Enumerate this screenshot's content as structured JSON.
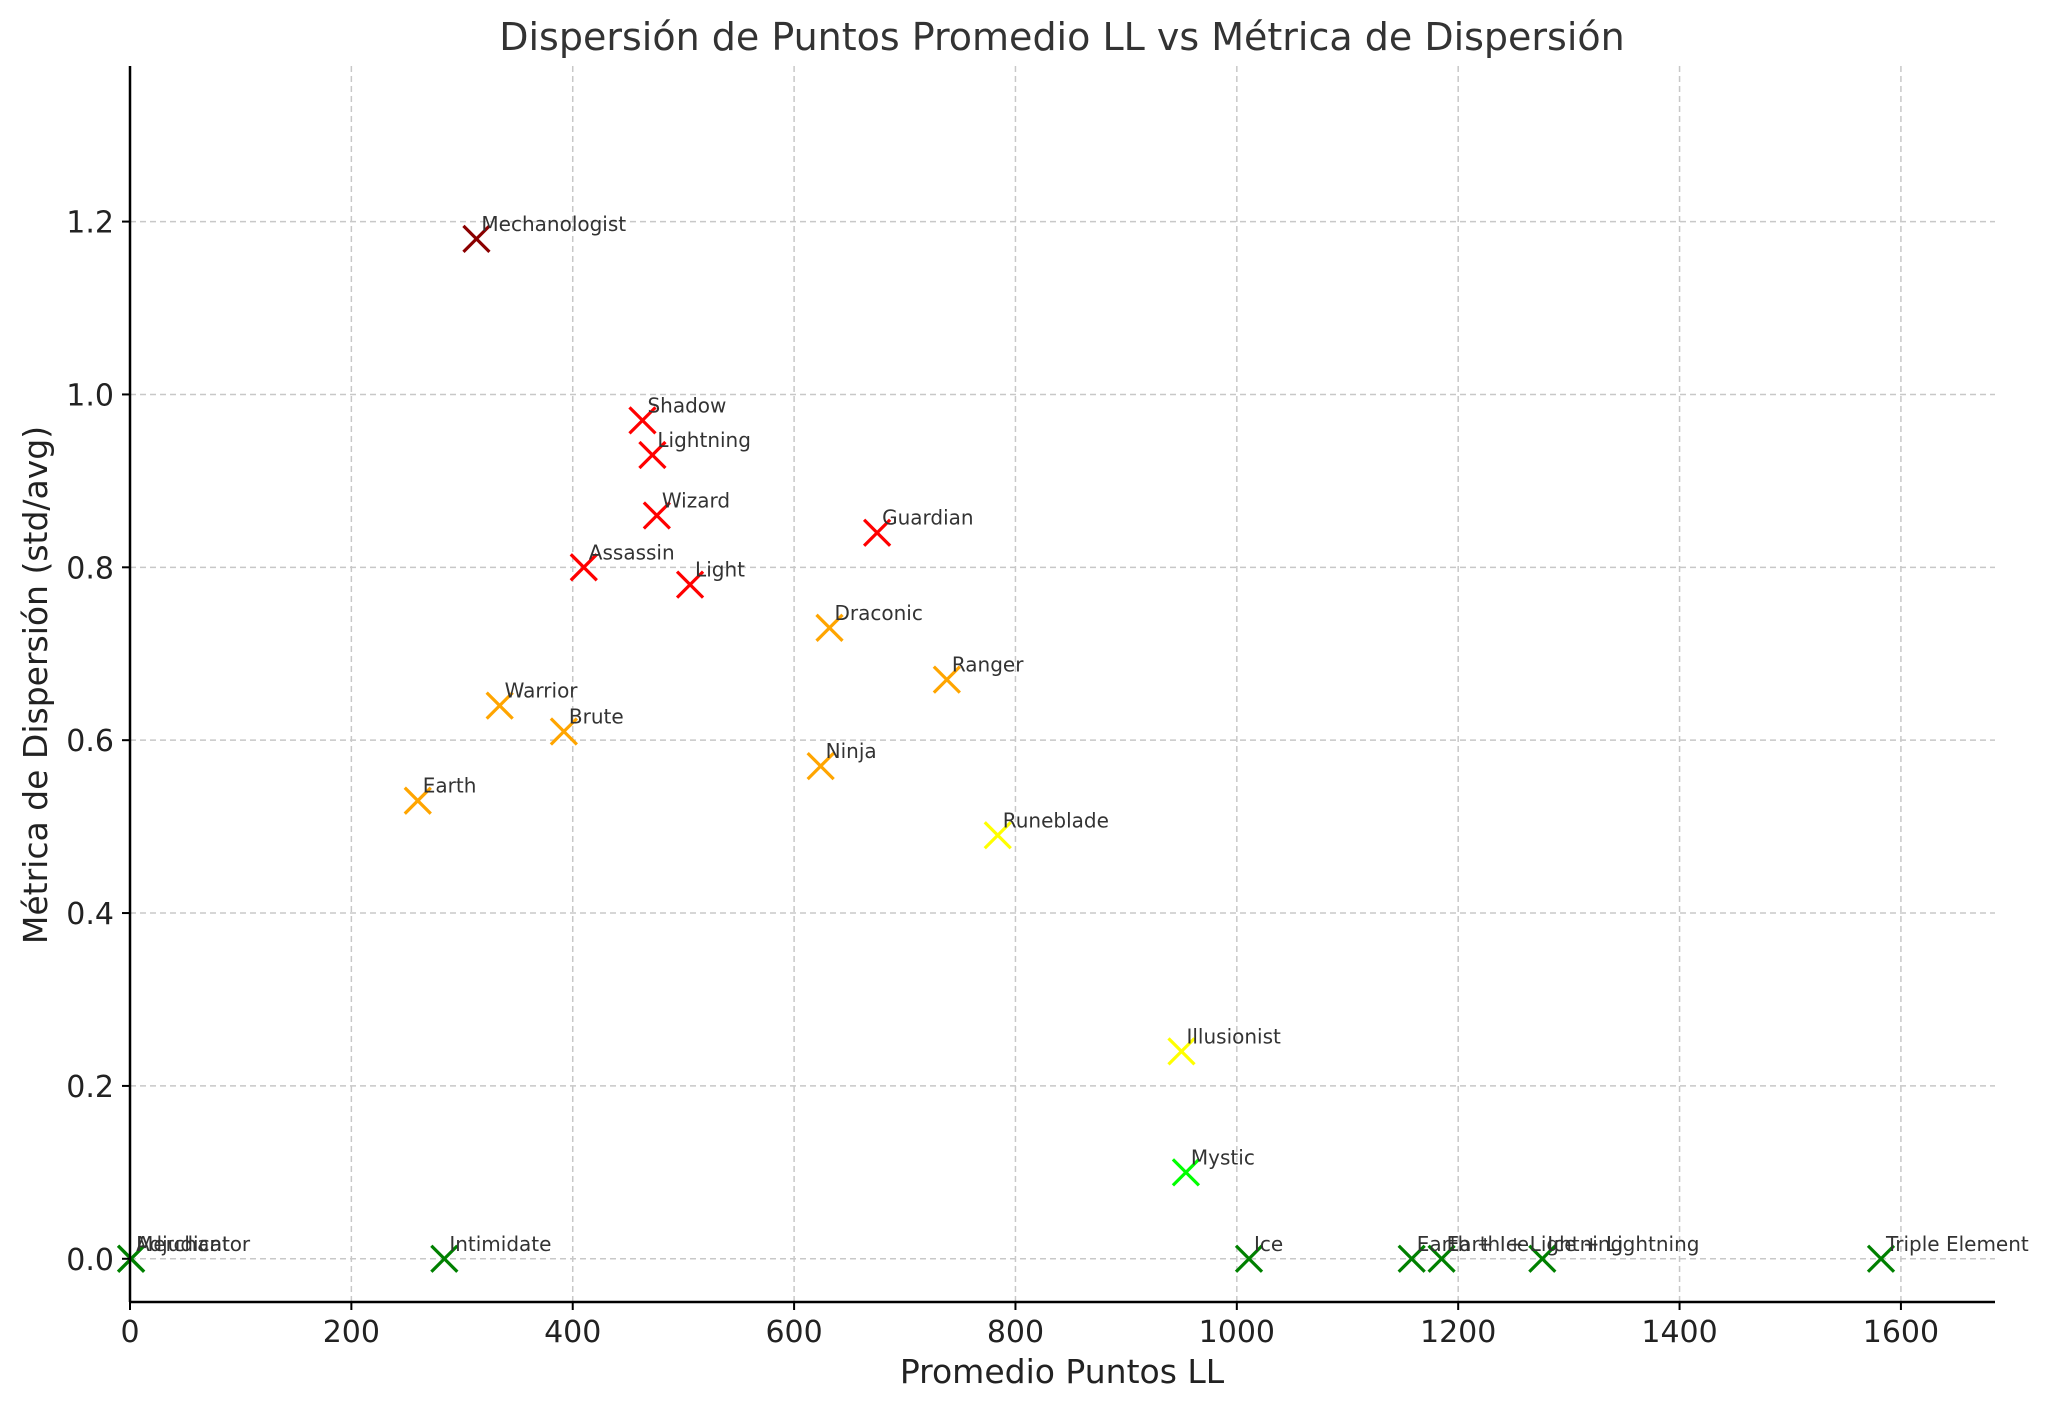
{
  "chart_data": {
    "type": "scatter",
    "title": "Dispersión de Puntos Promedio LL vs Métrica de Dispersión",
    "xlabel": "Promedio Puntos LL",
    "ylabel": "Métrica de Dispersión (std/avg)",
    "xlim": [
      0,
      1685
    ],
    "ylim": [
      -0.05,
      1.38
    ],
    "xticks": [
      "0",
      "200",
      "400",
      "600",
      "800",
      "1000",
      "1200",
      "1400",
      "1600"
    ],
    "yticks": [
      "0.0",
      "0.2",
      "0.4",
      "0.6",
      "0.8",
      "1.0",
      "1.2"
    ],
    "grid": true,
    "marker": "x",
    "colors": {
      "darkred": "#8b0000",
      "red": "#ff0000",
      "orange": "#ffa500",
      "yellow": "#ffff00",
      "lime": "#00ff00",
      "green": "#008000"
    },
    "points": [
      {
        "label": "Mechanologist",
        "x": 313,
        "y": 1.18,
        "color": "darkred"
      },
      {
        "label": "Shadow",
        "x": 463,
        "y": 0.97,
        "color": "red"
      },
      {
        "label": "Lightning",
        "x": 472,
        "y": 0.93,
        "color": "red"
      },
      {
        "label": "Wizard",
        "x": 476,
        "y": 0.86,
        "color": "red"
      },
      {
        "label": "Guardian",
        "x": 675,
        "y": 0.84,
        "color": "red"
      },
      {
        "label": "Assassin",
        "x": 410,
        "y": 0.8,
        "color": "red"
      },
      {
        "label": "Light",
        "x": 506,
        "y": 0.78,
        "color": "red"
      },
      {
        "label": "Draconic",
        "x": 632,
        "y": 0.73,
        "color": "orange"
      },
      {
        "label": "Ranger",
        "x": 738,
        "y": 0.67,
        "color": "orange"
      },
      {
        "label": "Warrior",
        "x": 334,
        "y": 0.64,
        "color": "orange"
      },
      {
        "label": "Brute",
        "x": 392,
        "y": 0.61,
        "color": "orange"
      },
      {
        "label": "Ninja",
        "x": 624,
        "y": 0.57,
        "color": "orange"
      },
      {
        "label": "Earth",
        "x": 260,
        "y": 0.53,
        "color": "orange"
      },
      {
        "label": "Runeblade",
        "x": 784,
        "y": 0.49,
        "color": "yellow"
      },
      {
        "label": "Illusionist",
        "x": 950,
        "y": 0.24,
        "color": "yellow"
      },
      {
        "label": "Mystic",
        "x": 954,
        "y": 0.1,
        "color": "lime"
      },
      {
        "label": "Adjudicator",
        "x": 1,
        "y": 0.0,
        "color": "green"
      },
      {
        "label": "Merchant",
        "x": 1,
        "y": 0.0,
        "color": "green"
      },
      {
        "label": "Intimidate",
        "x": 284,
        "y": 0.0,
        "color": "green"
      },
      {
        "label": "Ice",
        "x": 1011,
        "y": 0.0,
        "color": "green"
      },
      {
        "label": "Earth + Ice",
        "x": 1158,
        "y": 0.0,
        "color": "green"
      },
      {
        "label": "Earth + Lightning",
        "x": 1185,
        "y": 0.0,
        "color": "green"
      },
      {
        "label": "Ice + Lightning",
        "x": 1276,
        "y": 0.0,
        "color": "green"
      },
      {
        "label": "Triple Element",
        "x": 1582,
        "y": 0.0,
        "color": "green"
      }
    ]
  }
}
